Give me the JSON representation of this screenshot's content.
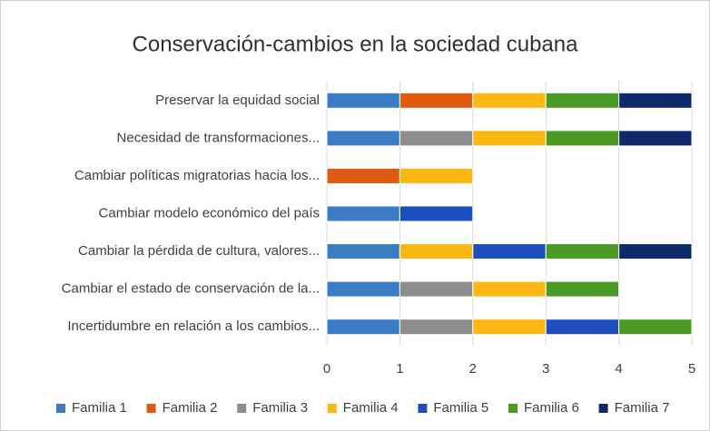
{
  "chart_data": {
    "type": "stacked-bar-horizontal",
    "title": "Conservación-cambios  en la sociedad cubana",
    "categories": [
      "Preservar la equidad social",
      "Necesidad de transformaciones...",
      "Cambiar políticas migratorias hacia los...",
      "Cambiar modelo económico del país",
      "Cambiar la pérdida de cultura, valores...",
      "Cambiar el estado de conservación de la...",
      "Incertidumbre en relación a los cambios..."
    ],
    "series": [
      {
        "name": "Familia 1",
        "color": "#3a7dc4",
        "values": [
          1,
          1,
          0,
          1,
          1,
          1,
          1
        ]
      },
      {
        "name": "Familia 2",
        "color": "#e05a12",
        "values": [
          1,
          0,
          1,
          0,
          0,
          0,
          0
        ]
      },
      {
        "name": "Familia 3",
        "color": "#8e8e8e",
        "values": [
          0,
          1,
          0,
          0,
          0,
          1,
          1
        ]
      },
      {
        "name": "Familia 4",
        "color": "#fbb813",
        "values": [
          1,
          1,
          1,
          0,
          1,
          1,
          1
        ]
      },
      {
        "name": "Familia 5",
        "color": "#1c4fbd",
        "values": [
          0,
          0,
          0,
          1,
          1,
          0,
          1
        ]
      },
      {
        "name": "Familia 6",
        "color": "#4c9a26",
        "values": [
          1,
          1,
          0,
          0,
          1,
          1,
          1
        ]
      },
      {
        "name": "Familia 7",
        "color": "#0f2a6a",
        "values": [
          1,
          1,
          0,
          0,
          1,
          0,
          0
        ]
      }
    ],
    "xlim": [
      0,
      5
    ],
    "xticks": [
      0,
      1,
      2,
      3,
      4,
      5
    ],
    "grid": true,
    "legend": "bottom"
  }
}
